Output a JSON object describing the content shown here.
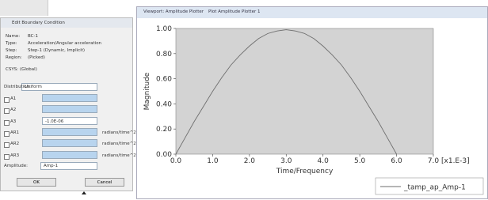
{
  "dialog": {
    "title": "Edit Boundary Condition",
    "fields": [
      {
        "label": "Name:",
        "value": "BC-1"
      },
      {
        "label": "Type:",
        "value": "Acceleration/Angular acceleration"
      },
      {
        "label": "Step:",
        "value": "Step-1 (Dynamic, Implicit)"
      },
      {
        "label": "Region:",
        "value": "(Picked)"
      }
    ],
    "csys": {
      "label": "CSYS:",
      "value": "(Global)"
    },
    "distribution": {
      "label": "Distribution:",
      "value": "Uniform"
    },
    "dofs": [
      {
        "label": "A1"
      },
      {
        "label": "A2"
      },
      {
        "label": "A3",
        "value": "-1.0E-06"
      },
      {
        "label": "AR1",
        "unit": "radians/time^2"
      },
      {
        "label": "AR2",
        "unit": "radians/time^2"
      },
      {
        "label": "AR3",
        "unit": "radians/time^2"
      }
    ],
    "amplitude": {
      "label": "Amplitude:",
      "value": "Amp-1"
    },
    "buttons": [
      "OK",
      "Cancel"
    ]
  },
  "plot_window": {
    "title": "Viewport: Amplitude Plotter",
    "tab": "Plot Amplitude Plotter 1"
  },
  "chart_data": {
    "type": "line",
    "x": [
      0,
      0.25,
      0.5,
      0.75,
      1,
      1.25,
      1.5,
      1.75,
      2,
      2.25,
      2.5,
      2.75,
      3,
      3.25,
      3.5,
      3.75,
      4,
      4.25,
      4.5,
      4.75,
      5,
      5.25,
      5.5,
      5.75,
      6
    ],
    "series": [
      {
        "name": "_tamp_ap_Amp-1",
        "color": "#6e6e6e",
        "values": [
          0,
          0.13,
          0.26,
          0.38,
          0.5,
          0.61,
          0.71,
          0.79,
          0.86,
          0.92,
          0.96,
          0.98,
          0.99,
          0.98,
          0.96,
          0.92,
          0.86,
          0.79,
          0.71,
          0.61,
          0.5,
          0.38,
          0.26,
          0.13,
          0
        ]
      }
    ],
    "xlim": [
      0,
      7
    ],
    "ylim": [
      0,
      1
    ],
    "xticks": [
      {
        "value": 0,
        "label": "0.0"
      },
      {
        "value": 1,
        "label": "1.0"
      },
      {
        "value": 2,
        "label": "2.0"
      },
      {
        "value": 3,
        "label": "3.0"
      },
      {
        "value": 4,
        "label": "4.0"
      },
      {
        "value": 5,
        "label": "5.0"
      },
      {
        "value": 6,
        "label": "6.0"
      },
      {
        "value": 7,
        "label": "7.0"
      }
    ],
    "yticks": [
      {
        "value": 0,
        "label": "0.00"
      },
      {
        "value": 0.2,
        "label": "0.20"
      },
      {
        "value": 0.4,
        "label": "0.40"
      },
      {
        "value": 0.6,
        "label": "0.60"
      },
      {
        "value": 0.8,
        "label": "0.80"
      },
      {
        "value": 1,
        "label": "1.00"
      }
    ],
    "x_label": "Time/Frequency",
    "x_unit": "[x1.E-3]",
    "y_label": "Magnitude",
    "legend": "lower right",
    "plot_background": "#d3d3d3"
  }
}
